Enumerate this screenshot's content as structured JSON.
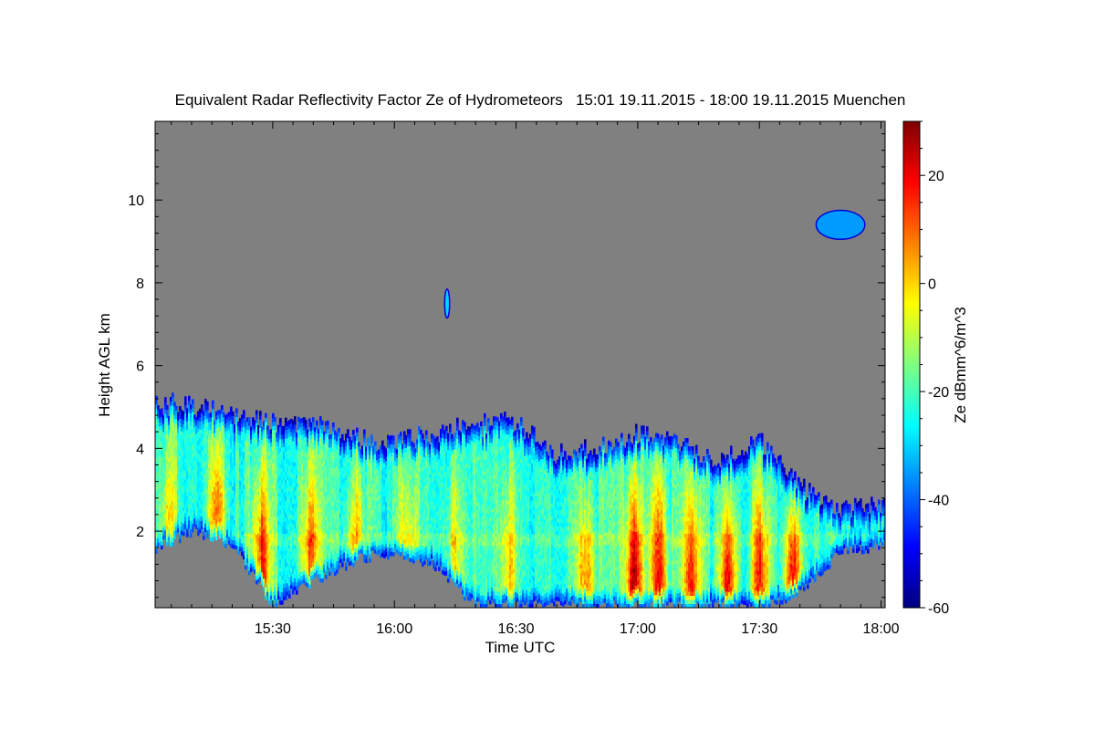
{
  "chart_data": {
    "type": "heatmap",
    "title": "Equivalent Radar Reflectivity Factor Ze of Hydrometeors   15:01 19.11.2015 - 18:00 19.11.2015 Muenchen",
    "xlabel": "Time UTC",
    "ylabel": "Height AGL km",
    "x_range_minutes_utc": [
      901,
      1081
    ],
    "x_ticks": [
      {
        "label": "15:30",
        "minutes_utc": 930
      },
      {
        "label": "16:00",
        "minutes_utc": 960
      },
      {
        "label": "16:30",
        "minutes_utc": 990
      },
      {
        "label": "17:00",
        "minutes_utc": 1020
      },
      {
        "label": "17:30",
        "minutes_utc": 1050
      },
      {
        "label": "18:00",
        "minutes_utc": 1080
      }
    ],
    "y_range_km": [
      0.15,
      11.9
    ],
    "y_ticks": [
      2,
      4,
      6,
      8,
      10
    ],
    "colorbar": {
      "label": "Ze dBmm^6/m^3",
      "range": [
        -60,
        30
      ],
      "ticks": [
        -60,
        -40,
        -20,
        0,
        20
      ],
      "colormap": "jet",
      "colors": [
        "#00007f",
        "#0000ff",
        "#007fff",
        "#00ffff",
        "#7fff7f",
        "#ffff00",
        "#ff7f00",
        "#ff0000",
        "#7f0000"
      ]
    },
    "no_data_color": "#808080",
    "cloud_boundaries": [
      {
        "minutes_utc": 901,
        "base_km": 1.6,
        "top_km": 5.0
      },
      {
        "minutes_utc": 910,
        "base_km": 2.0,
        "top_km": 5.0
      },
      {
        "minutes_utc": 920,
        "base_km": 1.7,
        "top_km": 4.8
      },
      {
        "minutes_utc": 930,
        "base_km": 0.2,
        "top_km": 4.6
      },
      {
        "minutes_utc": 940,
        "base_km": 0.8,
        "top_km": 4.5
      },
      {
        "minutes_utc": 950,
        "base_km": 1.3,
        "top_km": 4.2
      },
      {
        "minutes_utc": 960,
        "base_km": 1.5,
        "top_km": 4.1
      },
      {
        "minutes_utc": 970,
        "base_km": 1.2,
        "top_km": 4.3
      },
      {
        "minutes_utc": 980,
        "base_km": 0.2,
        "top_km": 4.5
      },
      {
        "minutes_utc": 990,
        "base_km": 0.2,
        "top_km": 4.6
      },
      {
        "minutes_utc": 1000,
        "base_km": 0.2,
        "top_km": 3.8
      },
      {
        "minutes_utc": 1010,
        "base_km": 0.2,
        "top_km": 4.0
      },
      {
        "minutes_utc": 1020,
        "base_km": 0.2,
        "top_km": 4.3
      },
      {
        "minutes_utc": 1030,
        "base_km": 0.2,
        "top_km": 4.1
      },
      {
        "minutes_utc": 1040,
        "base_km": 0.2,
        "top_km": 3.6
      },
      {
        "minutes_utc": 1050,
        "base_km": 0.2,
        "top_km": 4.2
      },
      {
        "minutes_utc": 1060,
        "base_km": 0.5,
        "top_km": 3.0
      },
      {
        "minutes_utc": 1070,
        "base_km": 1.5,
        "top_km": 2.5
      },
      {
        "minutes_utc": 1081,
        "base_km": 1.7,
        "top_km": 2.6
      }
    ],
    "high_reflectivity_cores": [
      {
        "minutes_utc": 904,
        "ze_dbz": -5
      },
      {
        "minutes_utc": 916,
        "ze_dbz": 5
      },
      {
        "minutes_utc": 927,
        "ze_dbz": 15
      },
      {
        "minutes_utc": 939,
        "ze_dbz": 10
      },
      {
        "minutes_utc": 950,
        "ze_dbz": 0
      },
      {
        "minutes_utc": 963,
        "ze_dbz": -5
      },
      {
        "minutes_utc": 975,
        "ze_dbz": -5
      },
      {
        "minutes_utc": 988,
        "ze_dbz": 0
      },
      {
        "minutes_utc": 1007,
        "ze_dbz": 10
      },
      {
        "minutes_utc": 1019,
        "ze_dbz": 28
      },
      {
        "minutes_utc": 1025,
        "ze_dbz": 15
      },
      {
        "minutes_utc": 1033,
        "ze_dbz": 15
      },
      {
        "minutes_utc": 1042,
        "ze_dbz": 22
      },
      {
        "minutes_utc": 1050,
        "ze_dbz": 20
      },
      {
        "minutes_utc": 1058,
        "ze_dbz": 24
      }
    ],
    "isolated_echoes": [
      {
        "minutes_utc": 973,
        "height_km": 7.5,
        "ze_dbz": -30
      },
      {
        "minutes_utc": 1070,
        "height_km": 9.4,
        "ze_dbz": -35
      }
    ]
  }
}
